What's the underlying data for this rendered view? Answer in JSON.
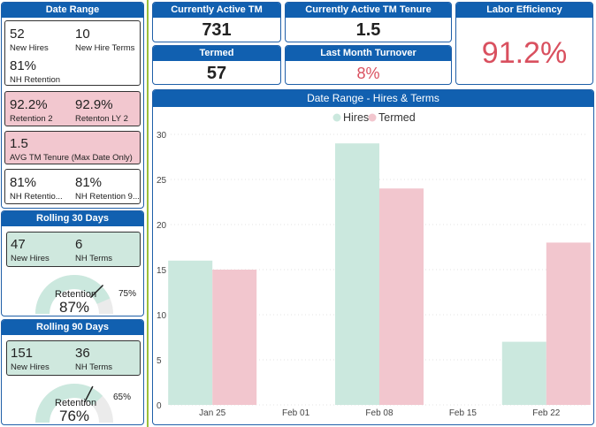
{
  "left": {
    "date_range": {
      "title": "Date Range",
      "new_hires_value": "52",
      "new_hires_label": "New Hires",
      "new_hire_terms_value": "10",
      "new_hire_terms_label": "New Hire Terms",
      "nh_retention_value": "81%",
      "nh_retention_label": "NH Retention",
      "retention2_value": "92.2%",
      "retention2_label": "Retention 2",
      "retention_ly2_value": "92.9%",
      "retention_ly2_label": "Retenton LY 2",
      "avg_tenure_value": "1.5",
      "avg_tenure_label": "AVG TM Tenure (Max Date Only)",
      "nh_retention_a_value": "81%",
      "nh_retention_a_label": "NH Retentio...",
      "nh_retention_b_value": "81%",
      "nh_retention_b_label": "NH Retention 9..."
    },
    "rolling30": {
      "title": "Rolling 30 Days",
      "new_hires_value": "47",
      "new_hires_label": "New Hires",
      "nh_terms_value": "6",
      "nh_terms_label": "NH Terms",
      "gauge_label": "Retention",
      "gauge_value": "87%",
      "gauge_target": "75%",
      "gauge_fraction": 0.87,
      "target_fraction": 0.75
    },
    "rolling90": {
      "title": "Rolling 90 Days",
      "new_hires_value": "151",
      "new_hires_label": "New Hires",
      "nh_terms_value": "36",
      "nh_terms_label": "NH Terms",
      "gauge_label": "Retention",
      "gauge_value": "76%",
      "gauge_target": "65%",
      "gauge_fraction": 0.76,
      "target_fraction": 0.65
    }
  },
  "kpis": {
    "active_tm": {
      "title": "Currently Active TM",
      "value": "731"
    },
    "active_tenure": {
      "title": "Currently Active TM Tenure",
      "value": "1.5"
    },
    "labor_eff": {
      "title": "Labor Efficiency",
      "value": "91.2%"
    },
    "termed": {
      "title": "Termed",
      "value": "57"
    },
    "turnover": {
      "title": "Last Month Turnover",
      "value": "8%"
    }
  },
  "colors": {
    "header": "#1160b0",
    "hires": "#cbe8de",
    "termed": "#f2c6ce",
    "red": "#d9505f"
  },
  "chart_data": {
    "type": "bar",
    "title": "Date Range - Hires & Terms",
    "legend": [
      "Hires",
      "Termed"
    ],
    "x_ticks": [
      "Jan 25",
      "Feb 01",
      "Feb 08",
      "Feb 15",
      "Feb 22"
    ],
    "categories": [
      "Jan 25",
      "Feb 08",
      "Feb 22"
    ],
    "series": [
      {
        "name": "Hires",
        "values": [
          16,
          29,
          7
        ]
      },
      {
        "name": "Termed",
        "values": [
          15,
          24,
          18
        ]
      }
    ],
    "y_ticks": [
      0,
      5,
      10,
      15,
      20,
      25,
      30
    ],
    "ylim": [
      0,
      30
    ]
  }
}
